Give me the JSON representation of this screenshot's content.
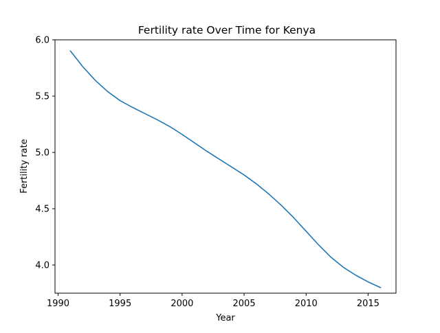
{
  "chart_data": {
    "type": "line",
    "title": "Fertility rate Over Time for Kenya",
    "xlabel": "Year",
    "ylabel": "Fertility rate",
    "xlim": [
      1989.75,
      2017.25
    ],
    "ylim": [
      3.75,
      6.0
    ],
    "xticks": [
      1990,
      1995,
      2000,
      2005,
      2010,
      2015
    ],
    "xtick_labels": [
      "1990",
      "1995",
      "2000",
      "2005",
      "2010",
      "2015"
    ],
    "yticks": [
      4.0,
      4.5,
      5.0,
      5.5,
      6.0
    ],
    "ytick_labels": [
      "4.0",
      "4.5",
      "5.0",
      "5.5",
      "6.0"
    ],
    "grid": false,
    "series": [
      {
        "name": "Fertility rate",
        "color": "#1f77b4",
        "x": [
          1991,
          1992,
          1993,
          1994,
          1995,
          1996,
          1997,
          1998,
          1999,
          2000,
          2001,
          2002,
          2003,
          2004,
          2005,
          2006,
          2007,
          2008,
          2009,
          2010,
          2011,
          2012,
          2013,
          2014,
          2015,
          2016
        ],
        "y": [
          5.9,
          5.76,
          5.64,
          5.54,
          5.46,
          5.4,
          5.345,
          5.29,
          5.23,
          5.16,
          5.085,
          5.01,
          4.94,
          4.87,
          4.8,
          4.72,
          4.63,
          4.53,
          4.42,
          4.3,
          4.18,
          4.07,
          3.98,
          3.91,
          3.85,
          3.8
        ]
      }
    ]
  }
}
